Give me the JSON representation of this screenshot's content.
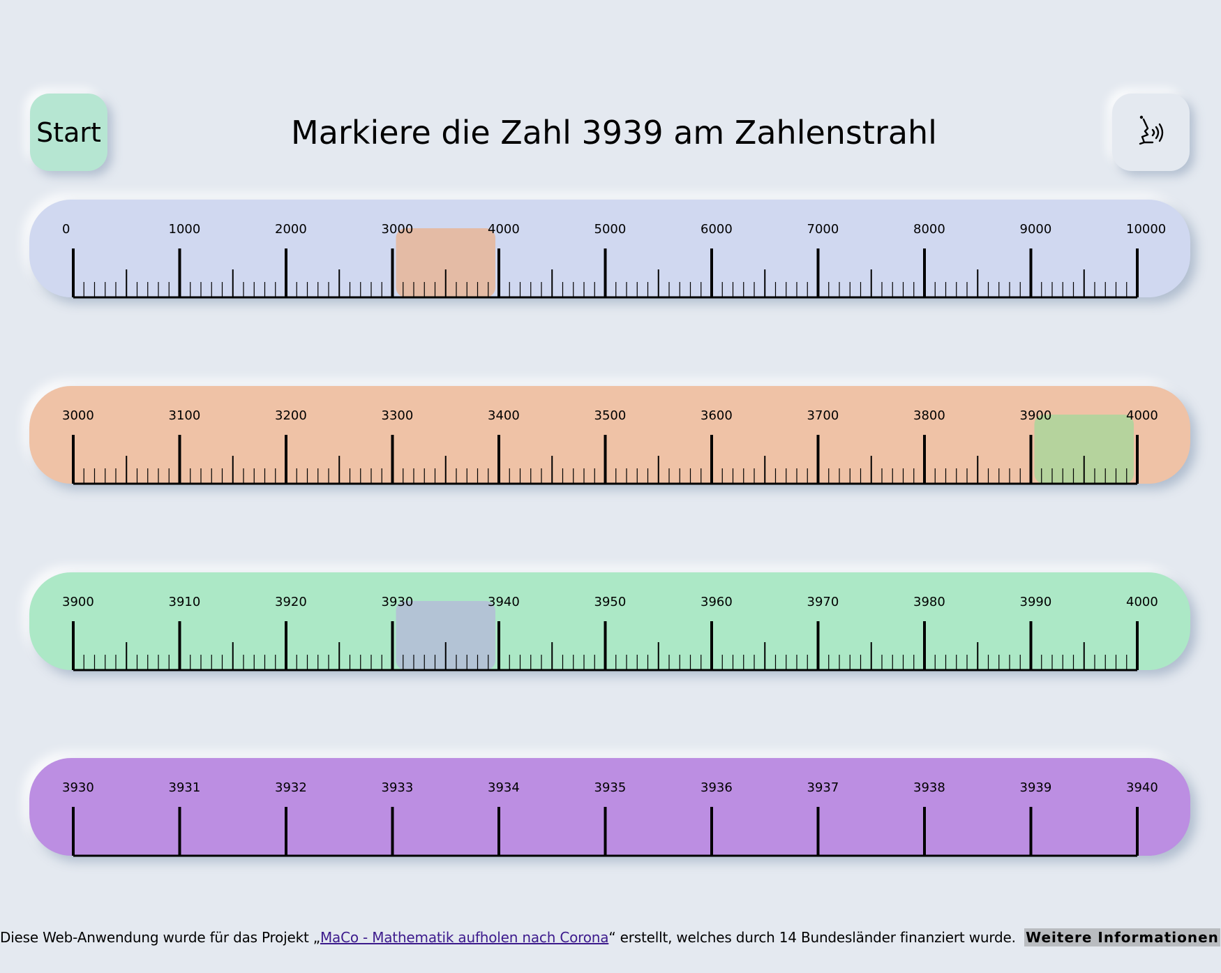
{
  "start_button": {
    "label": "Start"
  },
  "speak_button": {
    "icon": "speaker-head-icon"
  },
  "title": "Markiere die Zahl 3939 am Zahlenstrahl",
  "number_lines": [
    {
      "background": "#d0d8f0",
      "labels": [
        "0",
        "1000",
        "2000",
        "3000",
        "4000",
        "5000",
        "6000",
        "7000",
        "8000",
        "9000",
        "10000"
      ],
      "minor_ticks": true,
      "highlight": {
        "from_index": 3,
        "color": "#e5b89e"
      }
    },
    {
      "background": "#efc2a6",
      "labels": [
        "3000",
        "3100",
        "3200",
        "3300",
        "3400",
        "3500",
        "3600",
        "3700",
        "3800",
        "3900",
        "4000"
      ],
      "minor_ticks": true,
      "highlight": {
        "from_index": 9,
        "color": "#b0d59c"
      }
    },
    {
      "background": "#ace8c6",
      "labels": [
        "3900",
        "3910",
        "3920",
        "3930",
        "3940",
        "3950",
        "3960",
        "3970",
        "3980",
        "3990",
        "4000"
      ],
      "minor_ticks": true,
      "highlight": {
        "from_index": 3,
        "color": "#b3bfd6"
      }
    },
    {
      "background": "#bc8ee2",
      "labels": [
        "3930",
        "3931",
        "3932",
        "3933",
        "3934",
        "3935",
        "3936",
        "3937",
        "3938",
        "3939",
        "3940"
      ],
      "minor_ticks": false,
      "highlight": null
    }
  ],
  "footer": {
    "text_before": "Diese Web-Anwendung wurde für das Projekt „",
    "link_text": "MaCo - Mathematik aufholen nach Corona",
    "text_after": "“ erstellt, welches durch 14 Bundesländer finanziert wurde.",
    "button_label": "Weitere Informationen"
  }
}
